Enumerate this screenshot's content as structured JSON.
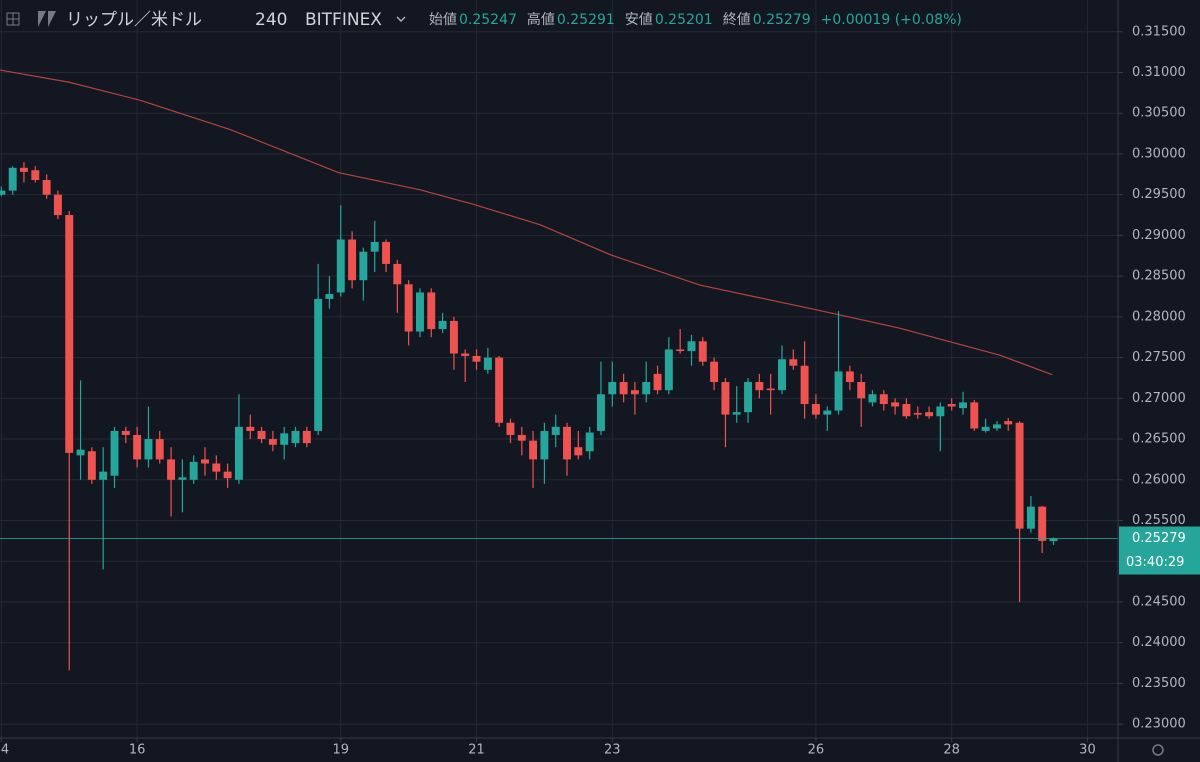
{
  "chart_data": {
    "type": "candlestick",
    "title": "リップル／米ドル",
    "interval": "240",
    "exchange": "BITFINEX",
    "ohlc_labels": [
      "始値",
      "高値",
      "安値",
      "終値"
    ],
    "change": "+0.00019 (+0.08%)",
    "countdown": "03:40:29",
    "up_color": "#26a69a",
    "down_color": "#ef5350",
    "grid": true,
    "x": [
      14,
      14.167,
      14.333,
      14.5,
      14.667,
      14.833,
      15,
      15.167,
      15.333,
      15.5,
      15.667,
      15.833,
      16,
      16.167,
      16.333,
      16.5,
      16.667,
      16.833,
      17,
      17.167,
      17.333,
      17.5,
      17.667,
      17.833,
      18,
      18.167,
      18.333,
      18.5,
      18.667,
      18.833,
      19,
      19.167,
      19.333,
      19.5,
      19.667,
      19.833,
      20,
      20.167,
      20.333,
      20.5,
      20.667,
      20.833,
      21,
      21.167,
      21.333,
      21.5,
      21.667,
      21.833,
      22,
      22.167,
      22.333,
      22.5,
      22.667,
      22.833,
      23,
      23.167,
      23.333,
      23.5,
      23.667,
      23.833,
      24,
      24.167,
      24.333,
      24.5,
      24.667,
      24.833,
      25,
      25.167,
      25.333,
      25.5,
      25.667,
      25.833,
      26,
      26.167,
      26.333,
      26.5,
      26.667,
      26.833,
      27,
      27.167,
      27.333,
      27.5,
      27.667,
      27.833,
      28,
      28.167,
      28.333,
      28.5,
      28.667,
      28.833,
      29,
      29.167,
      29.333,
      29.5
    ],
    "open": [
      0.295,
      0.2955,
      0.2983,
      0.298,
      0.2968,
      0.295,
      0.2925,
      0.263,
      0.2635,
      0.26,
      0.2605,
      0.266,
      0.2655,
      0.2625,
      0.265,
      0.2625,
      0.26,
      0.26,
      0.2625,
      0.262,
      0.261,
      0.26,
      0.2665,
      0.266,
      0.265,
      0.2643,
      0.2645,
      0.266,
      0.266,
      0.2822,
      0.283,
      0.2895,
      0.2845,
      0.288,
      0.2892,
      0.2865,
      0.284,
      0.2782,
      0.283,
      0.2785,
      0.2795,
      0.2755,
      0.2752,
      0.2735,
      0.275,
      0.267,
      0.2655,
      0.2648,
      0.2625,
      0.2655,
      0.2665,
      0.264,
      0.2635,
      0.266,
      0.2705,
      0.272,
      0.271,
      0.2705,
      0.273,
      0.271,
      0.276,
      0.2758,
      0.277,
      0.2745,
      0.272,
      0.268,
      0.2683,
      0.272,
      0.2712,
      0.271,
      0.2748,
      0.274,
      0.2693,
      0.268,
      0.2685,
      0.2733,
      0.272,
      0.2695,
      0.2705,
      0.2695,
      0.2693,
      0.2682,
      0.2683,
      0.2678,
      0.2693,
      0.2688,
      0.2695,
      0.266,
      0.2663,
      0.2672,
      0.267,
      0.254,
      0.2567,
      0.25247
    ],
    "high": [
      0.296,
      0.2985,
      0.299,
      0.2985,
      0.2975,
      0.2955,
      0.293,
      0.2722,
      0.264,
      0.264,
      0.2665,
      0.2665,
      0.2665,
      0.269,
      0.266,
      0.264,
      0.2625,
      0.263,
      0.264,
      0.263,
      0.262,
      0.2705,
      0.268,
      0.2665,
      0.266,
      0.2665,
      0.2665,
      0.2665,
      0.2865,
      0.285,
      0.2937,
      0.2905,
      0.2885,
      0.2918,
      0.2895,
      0.287,
      0.2845,
      0.2835,
      0.2835,
      0.2805,
      0.28,
      0.276,
      0.276,
      0.2762,
      0.2752,
      0.2675,
      0.2665,
      0.266,
      0.267,
      0.268,
      0.267,
      0.266,
      0.2665,
      0.2745,
      0.2745,
      0.273,
      0.272,
      0.2745,
      0.274,
      0.2775,
      0.2785,
      0.2778,
      0.2775,
      0.275,
      0.2725,
      0.2715,
      0.2725,
      0.273,
      0.273,
      0.2765,
      0.276,
      0.277,
      0.2705,
      0.269,
      0.2807,
      0.274,
      0.273,
      0.271,
      0.271,
      0.27,
      0.27,
      0.269,
      0.269,
      0.2695,
      0.27,
      0.2708,
      0.2698,
      0.2675,
      0.2672,
      0.2676,
      0.2672,
      0.258,
      0.2568,
      0.25291
    ],
    "low": [
      0.2948,
      0.295,
      0.2965,
      0.2965,
      0.2945,
      0.292,
      0.2366,
      0.26,
      0.2595,
      0.249,
      0.259,
      0.2645,
      0.2615,
      0.2615,
      0.262,
      0.2555,
      0.256,
      0.2595,
      0.2605,
      0.26,
      0.259,
      0.2595,
      0.265,
      0.2645,
      0.2635,
      0.2625,
      0.264,
      0.264,
      0.2655,
      0.281,
      0.2825,
      0.2835,
      0.282,
      0.2855,
      0.2855,
      0.2805,
      0.2765,
      0.2775,
      0.2775,
      0.278,
      0.2735,
      0.272,
      0.2735,
      0.273,
      0.2665,
      0.2645,
      0.263,
      0.259,
      0.2595,
      0.264,
      0.2605,
      0.2625,
      0.2625,
      0.2655,
      0.269,
      0.2695,
      0.268,
      0.2695,
      0.2705,
      0.2705,
      0.2755,
      0.274,
      0.274,
      0.271,
      0.264,
      0.267,
      0.267,
      0.27,
      0.268,
      0.2705,
      0.2735,
      0.2675,
      0.2675,
      0.266,
      0.268,
      0.271,
      0.2665,
      0.269,
      0.2685,
      0.268,
      0.2675,
      0.2675,
      0.2675,
      0.2635,
      0.2685,
      0.268,
      0.266,
      0.2658,
      0.266,
      0.266,
      0.245,
      0.2535,
      0.251,
      0.25201
    ],
    "close": [
      0.2955,
      0.2983,
      0.2978,
      0.2968,
      0.295,
      0.2925,
      0.2633,
      0.2637,
      0.26,
      0.261,
      0.266,
      0.2655,
      0.2625,
      0.265,
      0.2625,
      0.26,
      0.2603,
      0.2622,
      0.262,
      0.261,
      0.2602,
      0.2665,
      0.266,
      0.265,
      0.2643,
      0.2657,
      0.266,
      0.2645,
      0.2822,
      0.2828,
      0.2895,
      0.2845,
      0.288,
      0.2892,
      0.2865,
      0.284,
      0.2782,
      0.283,
      0.2785,
      0.2795,
      0.2755,
      0.2752,
      0.2745,
      0.275,
      0.267,
      0.2655,
      0.2648,
      0.2625,
      0.266,
      0.2665,
      0.2625,
      0.263,
      0.2658,
      0.2705,
      0.272,
      0.2705,
      0.2705,
      0.272,
      0.271,
      0.276,
      0.2758,
      0.277,
      0.2745,
      0.272,
      0.268,
      0.2683,
      0.272,
      0.271,
      0.271,
      0.2748,
      0.274,
      0.2693,
      0.268,
      0.2685,
      0.2733,
      0.272,
      0.27,
      0.2705,
      0.2693,
      0.269,
      0.2678,
      0.268,
      0.2678,
      0.269,
      0.269,
      0.2695,
      0.2663,
      0.2665,
      0.2668,
      0.2668,
      0.254,
      0.2567,
      0.2525,
      0.25279
    ],
    "ma": {
      "color": "#b5443f",
      "x": [
        13.98,
        15.0,
        16.04,
        17.37,
        18.97,
        20.17,
        20.96,
        21.94,
        22.98,
        24.29,
        25.99,
        27.24,
        28.71,
        29.48
      ],
      "values": [
        0.3103,
        0.3088,
        0.3066,
        0.303,
        0.2977,
        0.2956,
        0.2938,
        0.2913,
        0.2876,
        0.2839,
        0.2809,
        0.2786,
        0.2753,
        0.2729
      ]
    },
    "xlim": [
      13.98,
      30.45
    ],
    "xticks": [
      {
        "value": 14,
        "label": "4"
      },
      16,
      19,
      21,
      23,
      26,
      28,
      30
    ],
    "ylim": [
      0.2283,
      0.3189
    ],
    "yticks": [
      {
        "value": 0.23,
        "label": "0.23000"
      },
      {
        "value": 0.235,
        "label": "0.23500"
      },
      {
        "value": 0.24,
        "label": "0.24000"
      },
      {
        "value": 0.245,
        "label": "0.24500"
      },
      {
        "value": 0.25,
        "label": "0.25000"
      },
      {
        "value": 0.255,
        "label": "0.25500"
      },
      {
        "value": 0.26,
        "label": "0.26000"
      },
      {
        "value": 0.265,
        "label": "0.26500"
      },
      {
        "value": 0.27,
        "label": "0.27000"
      },
      {
        "value": 0.275,
        "label": "0.27500"
      },
      {
        "value": 0.28,
        "label": "0.28000"
      },
      {
        "value": 0.285,
        "label": "0.28500"
      },
      {
        "value": 0.29,
        "label": "0.29000"
      },
      {
        "value": 0.295,
        "label": "0.29500"
      },
      {
        "value": 0.3,
        "label": "0.30000"
      },
      {
        "value": 0.305,
        "label": "0.30500"
      },
      {
        "value": 0.31,
        "label": "0.31000"
      },
      {
        "value": 0.315,
        "label": "0.31500"
      }
    ]
  }
}
